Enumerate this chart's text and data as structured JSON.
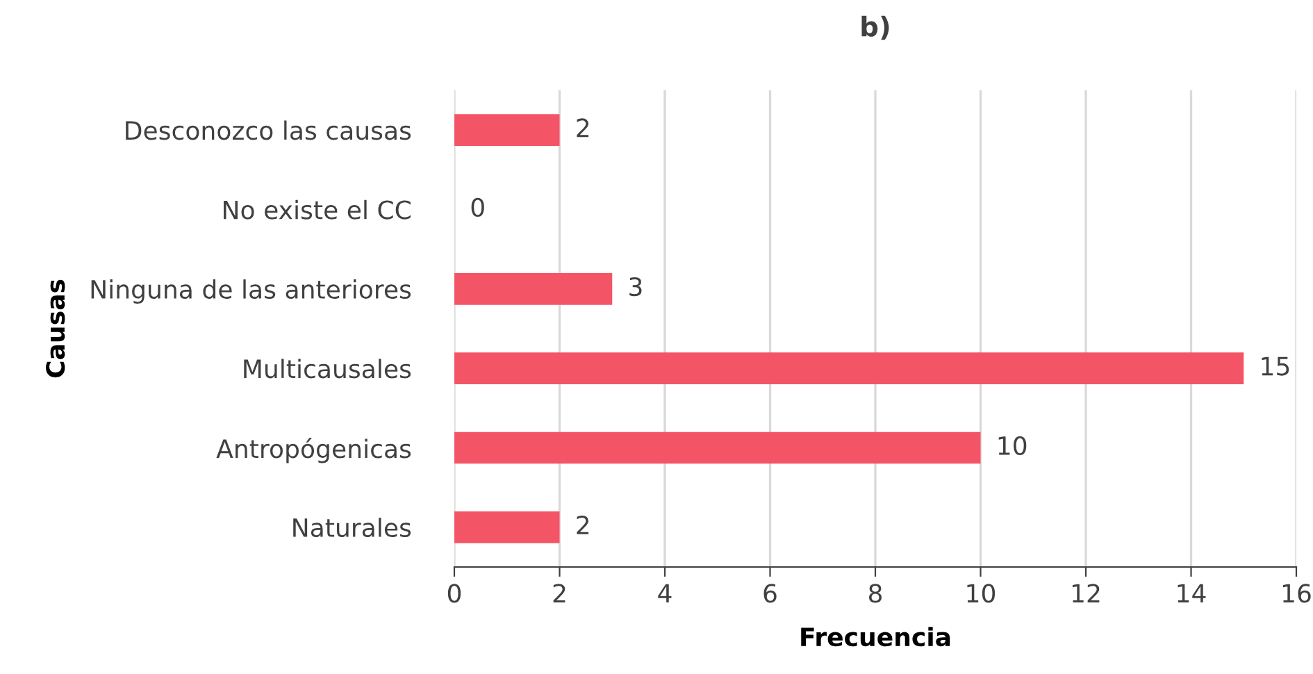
{
  "chart_data": {
    "type": "bar",
    "orientation": "horizontal",
    "title": "b)",
    "xlabel": "Frecuencia",
    "ylabel": "Causas",
    "categories": [
      "Desconozco las causas",
      "No existe el CC",
      "Ninguna de las anteriores",
      "Multicausales",
      "Antropógenicas",
      "Naturales"
    ],
    "values": [
      2,
      0,
      3,
      15,
      10,
      2
    ],
    "color": "#f45566",
    "xlim": [
      0,
      16
    ],
    "xticks": [
      0,
      2,
      4,
      6,
      8,
      10,
      12,
      14,
      16
    ],
    "grid": "x",
    "data_labels": true,
    "legend": false
  }
}
